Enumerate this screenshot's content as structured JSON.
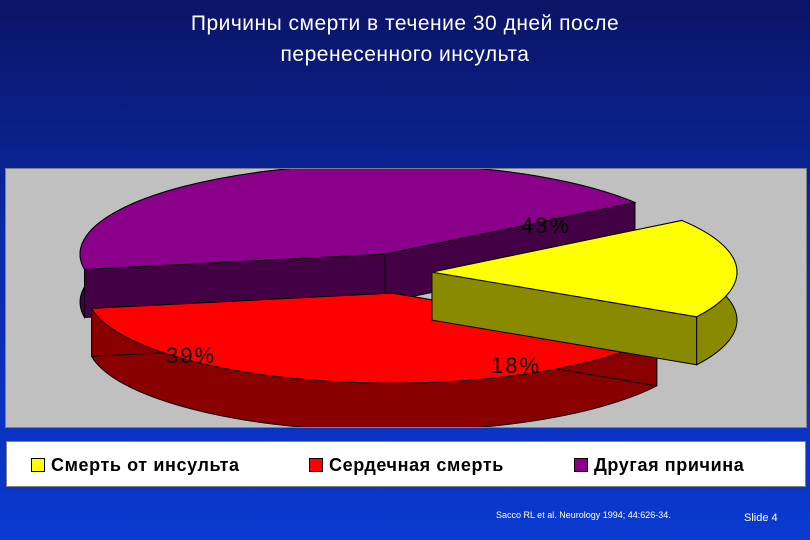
{
  "title": {
    "line1": "Причины смерти в течение 30 дней после",
    "line2": "перенесенного инсульта"
  },
  "chart_data": {
    "type": "pie",
    "style": "3d-exploded",
    "title": "Причины смерти в течение 30 дней после перенесенного инсульта",
    "legend_position": "bottom",
    "slices": [
      {
        "name": "Смерть от инсульта",
        "value": 18,
        "label": "18%",
        "color": "#ffff00",
        "side_color": "#8a8a00"
      },
      {
        "name": "Сердечная смерть",
        "value": 39,
        "label": "39%",
        "color": "#ff0000",
        "side_color": "#8a0000"
      },
      {
        "name": "Другая причина",
        "value": 43,
        "label": "43%",
        "color": "#8b008b",
        "side_color": "#440044"
      }
    ]
  },
  "legend": [
    {
      "label": "Смерть от инсульта",
      "color": "#ffff00"
    },
    {
      "label": "Сердечная смерть",
      "color": "#ff0000"
    },
    {
      "label": "Другая причина",
      "color": "#8b008b"
    }
  ],
  "source": "Sacco RL et al. Neurology 1994; 44:626-34.",
  "slide_label": "Slide 4"
}
